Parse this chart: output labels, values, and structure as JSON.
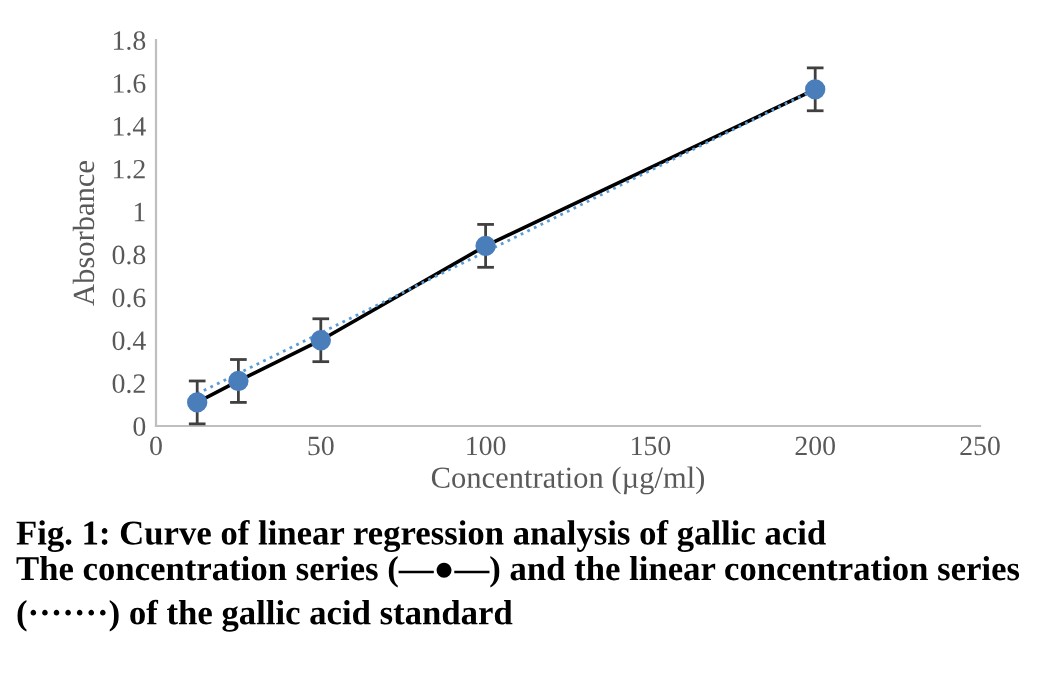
{
  "chart_data": {
    "type": "line",
    "title": "Fig. 1: Curve of linear regression analysis of gallic acid",
    "xlabel": "Concentration (µg/ml)",
    "ylabel": "Absorbance",
    "annotations": [
      "The concentration series (—●—) and the linear concentration series (·······) of the gallic acid standard"
    ],
    "series": [
      {
        "x": [
          12.5,
          25,
          50,
          100,
          200
        ],
        "values": [
          0.11,
          0.21,
          0.4,
          0.84,
          1.57
        ],
        "color": "#000000",
        "colors": [
          "#4a7ebb",
          "#4a7ebb",
          "#4a7ebb",
          "#4a7ebb",
          "#4a7ebb"
        ],
        "errors": [
          0.1,
          0.1,
          0.1,
          0.1,
          0.1
        ],
        "marker": "circle",
        "line_style": "solid"
      },
      {
        "x": [
          12.5,
          200
        ],
        "values": [
          0.15,
          1.57
        ],
        "color": "#5b9bd5",
        "marker": "none",
        "line_style": "dotted"
      }
    ],
    "xlim": [
      0,
      250
    ],
    "xticks": [
      0,
      50,
      100,
      150,
      200,
      250
    ],
    "ylim": [
      0,
      1.8
    ],
    "yticks": [
      0,
      0.2,
      0.4,
      0.6,
      0.8,
      1,
      1.2,
      1.4,
      1.6,
      1.8
    ],
    "grid": false,
    "legend": false
  }
}
